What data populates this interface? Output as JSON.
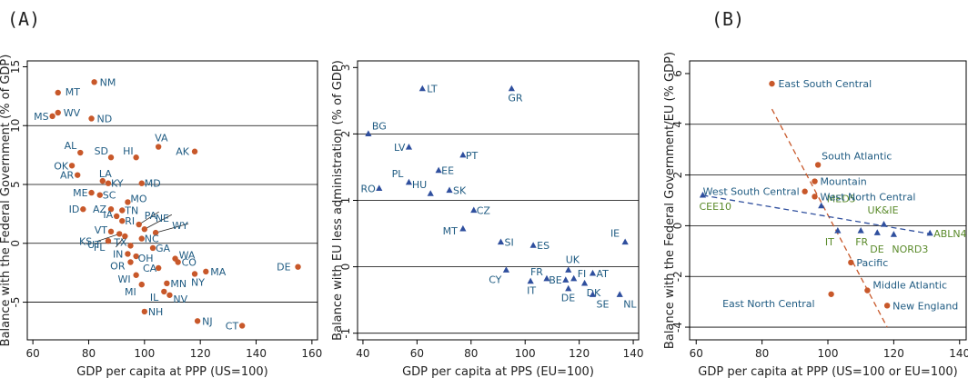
{
  "panel_labels": [
    "(A)",
    "(B)"
  ],
  "colors": {
    "us": "#c8582a",
    "eu": "#2f4f9e",
    "eu_text": "#1f5b82",
    "agg_text": "#5a8a2a",
    "grid": "#000000"
  },
  "chart_data": [
    {
      "type": "scatter",
      "xlabel": "GDP per capita at PPP (US=100)",
      "ylabel": "Balance with the Federal Government (% of GDP)",
      "xlim": [
        58,
        162
      ],
      "ylim": [
        -8.2,
        15.5
      ],
      "xticks": [
        60,
        80,
        100,
        120,
        140,
        160
      ],
      "yticks": [
        -5,
        0,
        5,
        10,
        15
      ],
      "gridlines": [
        -5,
        0,
        5,
        10
      ],
      "points": [
        {
          "label": "NM",
          "x": 82,
          "y": 13.7
        },
        {
          "label": "MT",
          "x": 69,
          "y": 12.8
        },
        {
          "label": "WV",
          "x": 69,
          "y": 11.1
        },
        {
          "label": "MS",
          "x": 67,
          "y": 10.8
        },
        {
          "label": "ND",
          "x": 81,
          "y": 10.6
        },
        {
          "label": "VA",
          "x": 105,
          "y": 8.2
        },
        {
          "label": "AK",
          "x": 118,
          "y": 7.8
        },
        {
          "label": "AL",
          "x": 77,
          "y": 7.7
        },
        {
          "label": "SD",
          "x": 88,
          "y": 7.3
        },
        {
          "label": "HI",
          "x": 97,
          "y": 7.3
        },
        {
          "label": "OK",
          "x": 74,
          "y": 6.6
        },
        {
          "label": "AR",
          "x": 76,
          "y": 5.8
        },
        {
          "label": "LA",
          "x": 85,
          "y": 5.3
        },
        {
          "label": "KY",
          "x": 87,
          "y": 5.1
        },
        {
          "label": "MD",
          "x": 99,
          "y": 5.1
        },
        {
          "label": "ME",
          "x": 81,
          "y": 4.3
        },
        {
          "label": "SC",
          "x": 84,
          "y": 4.1
        },
        {
          "label": "MO",
          "x": 94,
          "y": 3.5
        },
        {
          "label": "ID",
          "x": 78,
          "y": 2.9
        },
        {
          "label": "AZ",
          "x": 88,
          "y": 2.9
        },
        {
          "label": "TN",
          "x": 92,
          "y": 2.8
        },
        {
          "label": "IA",
          "x": 90,
          "y": 2.3
        },
        {
          "label": "RI",
          "x": 92,
          "y": 1.9
        },
        {
          "label": "PA",
          "x": 98,
          "y": 1.6
        },
        {
          "label": "NE",
          "x": 100,
          "y": 1.2
        },
        {
          "label": "WY",
          "x": 104,
          "y": 0.9
        },
        {
          "label": "VT",
          "x": 88,
          "y": 1.0
        },
        {
          "label": "KS",
          "x": 91,
          "y": 0.8
        },
        {
          "label": "FL",
          "x": 93,
          "y": 0.6
        },
        {
          "label": "UT",
          "x": 87,
          "y": 0.2
        },
        {
          "label": "NC",
          "x": 99,
          "y": 0.4
        },
        {
          "label": "TX",
          "x": 95,
          "y": -0.2
        },
        {
          "label": "GA",
          "x": 103,
          "y": -0.4
        },
        {
          "label": "IN",
          "x": 94,
          "y": -0.9
        },
        {
          "label": "OH",
          "x": 97,
          "y": -1.1
        },
        {
          "label": "OR",
          "x": 95,
          "y": -1.6
        },
        {
          "label": "WA",
          "x": 111,
          "y": -1.3
        },
        {
          "label": "CO",
          "x": 112,
          "y": -1.6
        },
        {
          "label": "CA",
          "x": 105,
          "y": -2.1
        },
        {
          "label": "MA",
          "x": 122,
          "y": -2.4
        },
        {
          "label": "WI",
          "x": 97,
          "y": -2.7
        },
        {
          "label": "NY",
          "x": 118,
          "y": -2.6
        },
        {
          "label": "MN",
          "x": 108,
          "y": -3.4
        },
        {
          "label": "MI",
          "x": 99,
          "y": -3.5
        },
        {
          "label": "IL",
          "x": 107,
          "y": -4.1
        },
        {
          "label": "NV",
          "x": 109,
          "y": -4.4
        },
        {
          "label": "DE",
          "x": 155,
          "y": -2.0
        },
        {
          "label": "NH",
          "x": 100,
          "y": -5.8
        },
        {
          "label": "NJ",
          "x": 119,
          "y": -6.6
        },
        {
          "label": "CT",
          "x": 135,
          "y": -7.0
        }
      ]
    },
    {
      "type": "scatter",
      "xlabel": "GDP per capita at PPS (EU=100)",
      "ylabel": "Balance with EU less administration (% of GDP)",
      "xlim": [
        38,
        142
      ],
      "ylim": [
        -1.1,
        3.1
      ],
      "xticks": [
        40,
        60,
        80,
        100,
        120,
        140
      ],
      "yticks": [
        -1,
        0,
        1,
        2,
        3
      ],
      "gridlines": [
        -1,
        0,
        1,
        2
      ],
      "points": [
        {
          "label": "LT",
          "x": 62,
          "y": 2.68
        },
        {
          "label": "GR",
          "x": 95,
          "y": 2.68
        },
        {
          "label": "BG",
          "x": 42,
          "y": 2.0
        },
        {
          "label": "LV",
          "x": 57,
          "y": 1.8
        },
        {
          "label": "PT",
          "x": 77,
          "y": 1.68
        },
        {
          "label": "EE",
          "x": 68,
          "y": 1.45
        },
        {
          "label": "PL",
          "x": 57,
          "y": 1.27
        },
        {
          "label": "RO",
          "x": 46,
          "y": 1.18
        },
        {
          "label": "SK",
          "x": 72,
          "y": 1.15
        },
        {
          "label": "HU",
          "x": 65,
          "y": 1.1
        },
        {
          "label": "CZ",
          "x": 81,
          "y": 0.85
        },
        {
          "label": "MT",
          "x": 77,
          "y": 0.57
        },
        {
          "label": "SI",
          "x": 91,
          "y": 0.37
        },
        {
          "label": "ES",
          "x": 103,
          "y": 0.32
        },
        {
          "label": "IE",
          "x": 137,
          "y": 0.37
        },
        {
          "label": "CY",
          "x": 93,
          "y": -0.05
        },
        {
          "label": "FR",
          "x": 108,
          "y": -0.18
        },
        {
          "label": "UK",
          "x": 116,
          "y": -0.05
        },
        {
          "label": "BE",
          "x": 115,
          "y": -0.2
        },
        {
          "label": "FI",
          "x": 118,
          "y": -0.18
        },
        {
          "label": "AT",
          "x": 125,
          "y": -0.1
        },
        {
          "label": "IT",
          "x": 102,
          "y": -0.22
        },
        {
          "label": "DK",
          "x": 122,
          "y": -0.25
        },
        {
          "label": "DE",
          "x": 116,
          "y": -0.33
        },
        {
          "label": "SE",
          "x": 125,
          "y": -0.42
        },
        {
          "label": "NL",
          "x": 135,
          "y": -0.42
        }
      ]
    },
    {
      "type": "scatter",
      "xlabel": "GDP per capita at PPP (US=100 or EU=100)",
      "ylabel": "Balance with the Federal Government/EU (% GDP)",
      "xlim": [
        58,
        142
      ],
      "ylim": [
        -4.5,
        6.5
      ],
      "xticks": [
        60,
        80,
        100,
        120,
        140
      ],
      "yticks": [
        -4,
        -2,
        0,
        2,
        4,
        6
      ],
      "gridlines": [
        -4,
        -2,
        0,
        2,
        4
      ],
      "us_points": [
        {
          "label": "East South Central",
          "x": 83,
          "y": 5.6
        },
        {
          "label": "South Atlantic",
          "x": 97,
          "y": 2.4
        },
        {
          "label": "Mountain",
          "x": 96,
          "y": 1.75
        },
        {
          "label": "West South Central",
          "x": 93,
          "y": 1.35
        },
        {
          "label": "West North Central",
          "x": 96,
          "y": 1.15
        },
        {
          "label": "Pacific",
          "x": 107,
          "y": -1.45
        },
        {
          "label": "Middle Atlantic",
          "x": 112,
          "y": -2.55
        },
        {
          "label": "East North Central",
          "x": 101,
          "y": -2.7
        },
        {
          "label": "New England",
          "x": 118,
          "y": -3.15
        }
      ],
      "eu_points": [
        {
          "label": "CEE10",
          "x": 62,
          "y": 1.2
        },
        {
          "label": "MED5",
          "x": 98,
          "y": 0.78
        },
        {
          "label": "UK&IE",
          "x": 117,
          "y": 0.05
        },
        {
          "label": "IT",
          "x": 103,
          "y": -0.2
        },
        {
          "label": "FR",
          "x": 110,
          "y": -0.2
        },
        {
          "label": "DE",
          "x": 115,
          "y": -0.28
        },
        {
          "label": "NORD3",
          "x": 120,
          "y": -0.35
        },
        {
          "label": "ABLN4",
          "x": 131,
          "y": -0.3
        }
      ],
      "us_trend": [
        [
          83,
          4.6
        ],
        [
          118,
          -4.0
        ]
      ],
      "eu_trend": [
        [
          62,
          1.2
        ],
        [
          131,
          -0.32
        ]
      ]
    }
  ]
}
